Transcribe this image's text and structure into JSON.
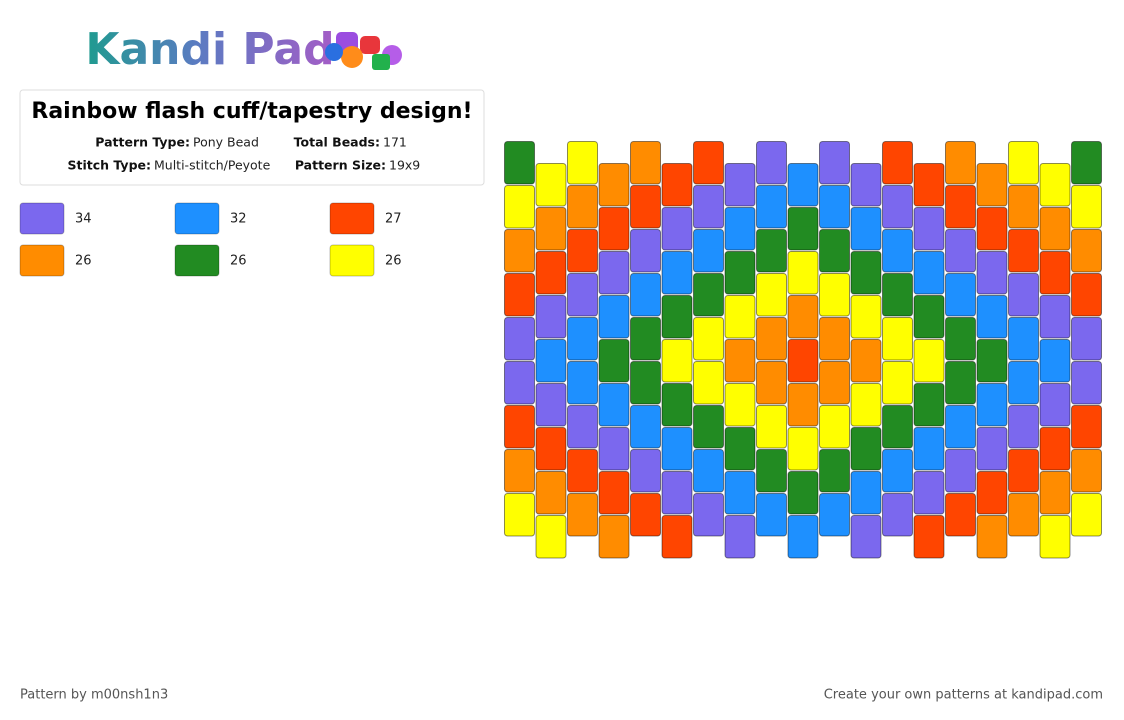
{
  "header": {
    "logo": "Kandi Pad"
  },
  "info": {
    "title": "Rainbow flash cuff/tapestry design!",
    "pattern_type_label": "Pattern Type:",
    "pattern_type": "Pony Bead",
    "total_beads_label": "Total Beads:",
    "total_beads": "171",
    "stitch_type_label": "Stitch Type:",
    "stitch_type": "Multi-stitch/Peyote",
    "pattern_size_label": "Pattern Size:",
    "pattern_size": "19x9"
  },
  "legend": [
    {
      "color": "#7B68EE",
      "count": "34"
    },
    {
      "color": "#1E90FF",
      "count": "32"
    },
    {
      "color": "#FF4500",
      "count": "27"
    },
    {
      "color": "#FF8C00",
      "count": "26"
    },
    {
      "color": "#228B22",
      "count": "26"
    },
    {
      "color": "#FFFF00",
      "count": "26"
    }
  ],
  "pattern": {
    "columns": [
      [
        "#228B22",
        "#FFFF00",
        "#FF8C00",
        "#FF4500",
        "#7B68EE",
        "#7B68EE",
        "#FF4500",
        "#FF8C00",
        "#FFFF00"
      ],
      [
        "#FFFF00",
        "#FF8C00",
        "#FF4500",
        "#7B68EE",
        "#1E90FF",
        "#7B68EE",
        "#FF4500",
        "#FF8C00",
        "#FFFF00"
      ],
      [
        "#FFFF00",
        "#FF8C00",
        "#FF4500",
        "#7B68EE",
        "#1E90FF",
        "#1E90FF",
        "#7B68EE",
        "#FF4500",
        "#FF8C00"
      ],
      [
        "#FF8C00",
        "#FF4500",
        "#7B68EE",
        "#1E90FF",
        "#228B22",
        "#1E90FF",
        "#7B68EE",
        "#FF4500",
        "#FF8C00"
      ],
      [
        "#FF8C00",
        "#FF4500",
        "#7B68EE",
        "#1E90FF",
        "#228B22",
        "#228B22",
        "#1E90FF",
        "#7B68EE",
        "#FF4500"
      ],
      [
        "#FF4500",
        "#7B68EE",
        "#1E90FF",
        "#228B22",
        "#FFFF00",
        "#228B22",
        "#1E90FF",
        "#7B68EE",
        "#FF4500"
      ],
      [
        "#FF4500",
        "#7B68EE",
        "#1E90FF",
        "#228B22",
        "#FFFF00",
        "#FFFF00",
        "#228B22",
        "#1E90FF",
        "#7B68EE"
      ],
      [
        "#7B68EE",
        "#1E90FF",
        "#228B22",
        "#FFFF00",
        "#FF8C00",
        "#FFFF00",
        "#228B22",
        "#1E90FF",
        "#7B68EE"
      ],
      [
        "#7B68EE",
        "#1E90FF",
        "#228B22",
        "#FFFF00",
        "#FF8C00",
        "#FF8C00",
        "#FFFF00",
        "#228B22",
        "#1E90FF"
      ],
      [
        "#1E90FF",
        "#228B22",
        "#FFFF00",
        "#FF8C00",
        "#FF4500",
        "#FF8C00",
        "#FFFF00",
        "#228B22",
        "#1E90FF"
      ],
      [
        "#7B68EE",
        "#1E90FF",
        "#228B22",
        "#FFFF00",
        "#FF8C00",
        "#FF8C00",
        "#FFFF00",
        "#228B22",
        "#1E90FF"
      ],
      [
        "#7B68EE",
        "#1E90FF",
        "#228B22",
        "#FFFF00",
        "#FF8C00",
        "#FFFF00",
        "#228B22",
        "#1E90FF",
        "#7B68EE"
      ],
      [
        "#FF4500",
        "#7B68EE",
        "#1E90FF",
        "#228B22",
        "#FFFF00",
        "#FFFF00",
        "#228B22",
        "#1E90FF",
        "#7B68EE"
      ],
      [
        "#FF4500",
        "#7B68EE",
        "#1E90FF",
        "#228B22",
        "#FFFF00",
        "#228B22",
        "#1E90FF",
        "#7B68EE",
        "#FF4500"
      ],
      [
        "#FF8C00",
        "#FF4500",
        "#7B68EE",
        "#1E90FF",
        "#228B22",
        "#228B22",
        "#1E90FF",
        "#7B68EE",
        "#FF4500"
      ],
      [
        "#FF8C00",
        "#FF4500",
        "#7B68EE",
        "#1E90FF",
        "#228B22",
        "#1E90FF",
        "#7B68EE",
        "#FF4500",
        "#FF8C00"
      ],
      [
        "#FFFF00",
        "#FF8C00",
        "#FF4500",
        "#7B68EE",
        "#1E90FF",
        "#1E90FF",
        "#7B68EE",
        "#FF4500",
        "#FF8C00"
      ],
      [
        "#FFFF00",
        "#FF8C00",
        "#FF4500",
        "#7B68EE",
        "#1E90FF",
        "#7B68EE",
        "#FF4500",
        "#FF8C00",
        "#FFFF00"
      ],
      [
        "#228B22",
        "#FFFF00",
        "#FF8C00",
        "#FF4500",
        "#7B68EE",
        "#7B68EE",
        "#FF4500",
        "#FF8C00",
        "#FFFF00"
      ]
    ]
  },
  "footer": {
    "author": "Pattern by m00nsh1n3",
    "promo": "Create your own patterns at kandipad.com"
  }
}
